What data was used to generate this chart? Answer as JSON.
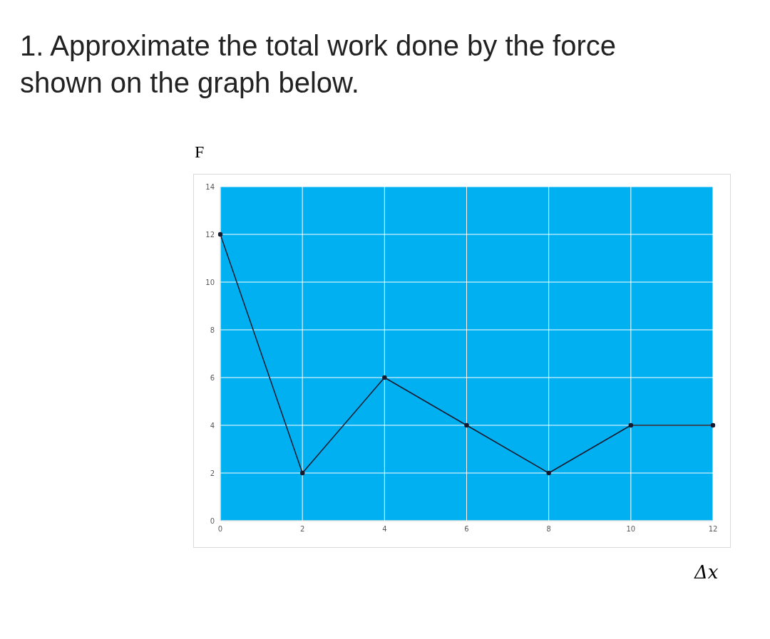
{
  "chart_data": {
    "type": "line",
    "title": "1. Approximate the total work done by the force shown on the graph below.",
    "xlabel": "Δx",
    "ylabel": "F",
    "x": [
      0,
      2,
      4,
      6,
      8,
      10,
      12
    ],
    "series": [
      {
        "color": "#1a1a2e",
        "values": [
          12,
          2,
          6,
          4,
          2,
          4,
          4
        ]
      }
    ],
    "xlim": [
      0,
      12
    ],
    "xticks": [
      0,
      2,
      4,
      6,
      8,
      10,
      12
    ],
    "ylim": [
      0,
      14
    ],
    "yticks": [
      0,
      2,
      4,
      6,
      8,
      10,
      12,
      14
    ],
    "grid": true,
    "marker": "circle",
    "line_style": "solid"
  }
}
